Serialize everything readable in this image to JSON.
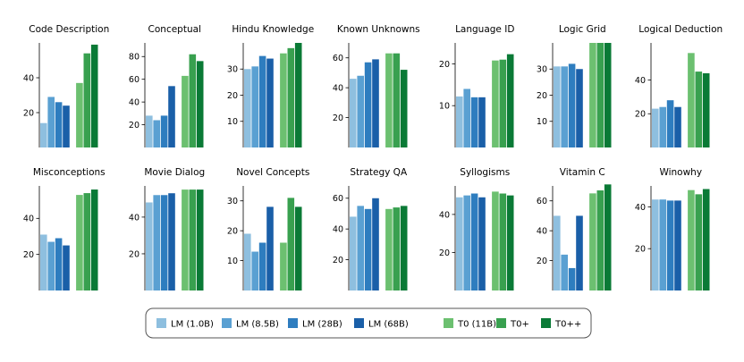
{
  "chart_data": {
    "type": "bar",
    "series": [
      {
        "name": "LM (1.0B)",
        "color": "#8ebfdf"
      },
      {
        "name": "LM (8.5B)",
        "color": "#5aa0d2"
      },
      {
        "name": "LM (28B)",
        "color": "#2e7dbf"
      },
      {
        "name": "LM (68B)",
        "color": "#1a5fa8"
      },
      {
        "name": "T0 (11B)",
        "color": "#6cc070"
      },
      {
        "name": "T0+",
        "color": "#38a04f"
      },
      {
        "name": "T0++",
        "color": "#0a7a36"
      }
    ],
    "legend_position": "bottom",
    "panels": [
      {
        "title": "Code Description",
        "ylim": [
          0,
          60
        ],
        "yticks": [
          20,
          40
        ],
        "values": [
          14,
          29,
          26,
          24,
          37,
          54,
          59
        ]
      },
      {
        "title": "Conceptual",
        "ylim": [
          0,
          92
        ],
        "yticks": [
          20,
          40,
          60,
          80
        ],
        "values": [
          28,
          24,
          28,
          54,
          63,
          82,
          76
        ]
      },
      {
        "title": "Hindu Knowledge",
        "ylim": [
          0,
          40
        ],
        "yticks": [
          10,
          20,
          30
        ],
        "values": [
          30,
          31,
          35,
          34,
          36,
          38,
          40
        ]
      },
      {
        "title": "Known Unknowns",
        "ylim": [
          0,
          70
        ],
        "yticks": [
          20,
          40,
          60
        ],
        "values": [
          46,
          48,
          57,
          59,
          63,
          63,
          52
        ]
      },
      {
        "title": "Language ID",
        "ylim": [
          0,
          25
        ],
        "yticks": [
          10,
          20
        ],
        "values": [
          12.2,
          14,
          12,
          12,
          20.8,
          21,
          22.3
        ]
      },
      {
        "title": "Logic Grid",
        "ylim": [
          0,
          40
        ],
        "yticks": [
          10,
          20,
          30
        ],
        "values": [
          31,
          31,
          32,
          30,
          40,
          40,
          40
        ]
      },
      {
        "title": "Logical Deduction",
        "ylim": [
          0,
          62
        ],
        "yticks": [
          20,
          40
        ],
        "values": [
          23,
          24,
          28,
          24,
          56,
          45,
          44
        ]
      },
      {
        "title": "Misconceptions",
        "ylim": [
          0,
          58
        ],
        "yticks": [
          20,
          40
        ],
        "values": [
          31,
          27,
          29,
          25,
          53,
          54,
          56
        ]
      },
      {
        "title": "Movie Dialog",
        "ylim": [
          0,
          57
        ],
        "yticks": [
          20,
          40
        ],
        "values": [
          48,
          52,
          52,
          53,
          55,
          55,
          55
        ]
      },
      {
        "title": "Novel Concepts",
        "ylim": [
          0,
          35
        ],
        "yticks": [
          10,
          20,
          30
        ],
        "values": [
          19,
          13,
          16,
          28,
          16,
          31,
          28
        ]
      },
      {
        "title": "Strategy QA",
        "ylim": [
          0,
          68
        ],
        "yticks": [
          20,
          40,
          60
        ],
        "values": [
          48,
          55,
          53,
          60,
          53,
          54,
          55
        ]
      },
      {
        "title": "Syllogisms",
        "ylim": [
          0,
          55
        ],
        "yticks": [
          20,
          40
        ],
        "values": [
          49,
          50,
          51,
          49,
          52,
          51,
          50
        ]
      },
      {
        "title": "Vitamin C",
        "ylim": [
          0,
          70
        ],
        "yticks": [
          20,
          40,
          60
        ],
        "values": [
          50,
          24,
          15,
          50,
          65,
          67,
          71
        ]
      },
      {
        "title": "Winowhy",
        "ylim": [
          0,
          50
        ],
        "yticks": [
          20,
          40
        ],
        "values": [
          43.5,
          43.5,
          43,
          43,
          48,
          46,
          48.5
        ]
      }
    ]
  }
}
